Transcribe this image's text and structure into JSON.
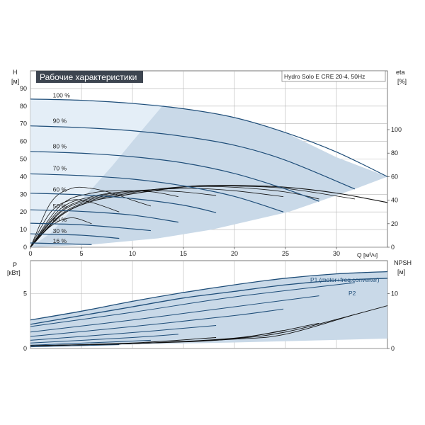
{
  "chart_data": [
    {
      "type": "line",
      "title": "Рабочие характеристики",
      "model": "Hydro Solo E CRE 20-4, 50Hz",
      "xlabel": "Q [м³/ч]",
      "ylabel_top": "H",
      "ylabel_bottom": "[м]",
      "y2label_top": "eta",
      "y2label_bottom": "[%]",
      "xlim": [
        0,
        35
      ],
      "ylim": [
        0,
        100
      ],
      "y2lim": [
        0,
        150
      ],
      "xticks": [
        0,
        5,
        10,
        15,
        20,
        25,
        30
      ],
      "yticks": [
        0,
        10,
        20,
        30,
        40,
        50,
        60,
        70,
        80,
        90
      ],
      "y2ticks": [
        0,
        20,
        40,
        60,
        80,
        100
      ],
      "grid": true,
      "colors": {
        "curve": "#1f4e79",
        "region_outer": "#c9d9e8",
        "region_inner": "#e4eef7",
        "eta": "#111111"
      },
      "region_outer": [
        [
          0,
          84
        ],
        [
          5,
          83.3
        ],
        [
          10,
          82
        ],
        [
          13,
          80.5
        ],
        [
          20,
          73.5
        ],
        [
          25,
          65
        ],
        [
          30,
          51
        ],
        [
          35,
          40
        ],
        [
          31.8,
          33
        ],
        [
          25.3,
          20
        ],
        [
          17.8,
          10
        ],
        [
          12.5,
          5
        ],
        [
          6,
          1.5
        ],
        [
          0,
          0
        ]
      ],
      "region_inner": [
        [
          0,
          84
        ],
        [
          5,
          83.3
        ],
        [
          10,
          82
        ],
        [
          13,
          80.5
        ],
        [
          10,
          60
        ],
        [
          8,
          46
        ],
        [
          6,
          33
        ],
        [
          4,
          21
        ],
        [
          2,
          8
        ],
        [
          0,
          0
        ]
      ],
      "series": [
        {
          "name": "100 %",
          "label_x": 2.2,
          "label_y": 85,
          "x": [
            0,
            5,
            10,
            15,
            20,
            25,
            30,
            35
          ],
          "y": [
            84,
            83.3,
            81.5,
            78.5,
            73.5,
            65,
            54,
            40
          ]
        },
        {
          "name": "90 %",
          "label_x": 2.2,
          "label_y": 70.5,
          "x": [
            0,
            5,
            10,
            15,
            20,
            25,
            31.8
          ],
          "y": [
            68.8,
            67.8,
            66,
            62.8,
            57.8,
            49.3,
            33
          ]
        },
        {
          "name": "80 %",
          "label_x": 2.2,
          "label_y": 56,
          "x": [
            0,
            5,
            10,
            15,
            20,
            25,
            28.3
          ],
          "y": [
            54.3,
            53.3,
            51.3,
            47.8,
            41.8,
            33,
            26
          ]
        },
        {
          "name": "70 %",
          "label_x": 2.2,
          "label_y": 43.5,
          "x": [
            0,
            5,
            10,
            15,
            20,
            24.8
          ],
          "y": [
            41.6,
            40.6,
            38.6,
            34.8,
            28.8,
            20
          ]
        },
        {
          "name": "60 %",
          "label_x": 2.2,
          "label_y": 31.5,
          "x": [
            0,
            5,
            10,
            15,
            18.2
          ],
          "y": [
            30.6,
            29.7,
            27.6,
            23.8,
            19.6
          ]
        },
        {
          "name": "50 %",
          "label_x": 2.2,
          "label_y": 22,
          "x": [
            0,
            5,
            10,
            14.5
          ],
          "y": [
            21.2,
            20.3,
            18.2,
            14.2
          ]
        },
        {
          "name": "40 %",
          "label_x": 2.2,
          "label_y": 14.5,
          "x": [
            0,
            5,
            10,
            11.8
          ],
          "y": [
            13.6,
            12.7,
            10.4,
            9.4
          ]
        },
        {
          "name": "30 %",
          "label_x": 2.2,
          "label_y": 8,
          "x": [
            0,
            5,
            8.7
          ],
          "y": [
            7.6,
            6.8,
            5
          ]
        },
        {
          "name": "16 %",
          "label_x": 2.2,
          "label_y": 2.5,
          "x": [
            0,
            3,
            6
          ],
          "y": [
            2.4,
            2.0,
            1.5
          ]
        }
      ],
      "eta_curves": [
        {
          "x": [
            0,
            3,
            6,
            9,
            12,
            16,
            20,
            25,
            30,
            35
          ],
          "y": [
            0,
            27,
            39,
            44,
            48,
            52,
            52.5,
            51,
            46,
            38
          ]
        },
        {
          "x": [
            0,
            3,
            6,
            9,
            12,
            16,
            20,
            25,
            31.8
          ],
          "y": [
            0,
            28,
            40,
            45,
            49,
            52,
            52,
            50,
            41
          ]
        },
        {
          "x": [
            0,
            3,
            6,
            9,
            12,
            16,
            20,
            25,
            28.3
          ],
          "y": [
            0,
            30,
            41,
            46,
            49,
            51.5,
            51,
            47,
            41
          ]
        },
        {
          "x": [
            0,
            3,
            6,
            9,
            12,
            16,
            20,
            24.8
          ],
          "y": [
            0,
            31,
            42,
            47,
            49,
            50,
            48,
            43
          ]
        },
        {
          "x": [
            0,
            3,
            6,
            9,
            12,
            15,
            18.2
          ],
          "y": [
            0,
            33,
            43,
            47,
            48,
            47,
            44
          ]
        },
        {
          "x": [
            0,
            3,
            6,
            9,
            12,
            14.5
          ],
          "y": [
            0,
            36,
            46,
            48,
            47,
            43
          ]
        },
        {
          "x": [
            0,
            2,
            4,
            6,
            8,
            10,
            11.8
          ],
          "y": [
            0,
            38,
            50,
            50,
            46,
            40,
            35
          ]
        },
        {
          "x": [
            0,
            2,
            4,
            6,
            8.7
          ],
          "y": [
            0,
            30,
            40,
            38,
            30
          ]
        },
        {
          "x": [
            0,
            2,
            4,
            6
          ],
          "y": [
            0,
            18,
            25,
            20
          ]
        }
      ]
    },
    {
      "type": "line",
      "ylabel_top": "P",
      "ylabel_bottom": "[кВт]",
      "y2label_top": "NPSH",
      "y2label_bottom": "[м]",
      "xlim": [
        0,
        35
      ],
      "ylim": [
        0,
        8
      ],
      "y2lim": [
        0,
        16
      ],
      "yticks": [
        0,
        5
      ],
      "y2ticks": [
        0,
        10
      ],
      "grid": true,
      "series": [
        {
          "name": "P1 (motor+freq.converter)",
          "x": [
            0,
            5,
            10,
            15,
            20,
            25,
            30,
            35
          ],
          "y": [
            2.6,
            3.4,
            4.3,
            5.1,
            5.8,
            6.4,
            6.8,
            7.0
          ]
        },
        {
          "name": "P2",
          "x": [
            0,
            5,
            10,
            15,
            20,
            25,
            30,
            35
          ],
          "y": [
            2.2,
            3.0,
            3.8,
            4.6,
            5.2,
            5.8,
            6.2,
            6.4
          ]
        }
      ],
      "p_family": [
        {
          "x": [
            0,
            10,
            20,
            31.8
          ],
          "y": [
            2.0,
            3.3,
            4.7,
            6.0
          ]
        },
        {
          "x": [
            0,
            10,
            20,
            28.3
          ],
          "y": [
            1.5,
            2.6,
            3.8,
            4.8
          ]
        },
        {
          "x": [
            0,
            10,
            20,
            24.8
          ],
          "y": [
            1.1,
            2.0,
            3.0,
            3.6
          ]
        },
        {
          "x": [
            0,
            10,
            18.2
          ],
          "y": [
            0.75,
            1.45,
            2.1
          ]
        },
        {
          "x": [
            0,
            10,
            14.5
          ],
          "y": [
            0.5,
            1.0,
            1.3
          ]
        },
        {
          "x": [
            0,
            8,
            11.8
          ],
          "y": [
            0.3,
            0.6,
            0.75
          ]
        },
        {
          "x": [
            0,
            8.7
          ],
          "y": [
            0.15,
            0.35
          ]
        }
      ],
      "npsh_curves": [
        {
          "x": [
            0,
            10,
            20,
            25,
            30,
            35
          ],
          "y": [
            0.5,
            0.9,
            1.8,
            3.0,
            5.3,
            7.8
          ]
        },
        {
          "x": [
            0,
            10,
            20,
            25,
            31.8
          ],
          "y": [
            0.5,
            0.9,
            1.7,
            2.6,
            6.2
          ]
        },
        {
          "x": [
            0,
            10,
            20,
            28.3
          ],
          "y": [
            0.5,
            0.9,
            1.8,
            4.6
          ]
        },
        {
          "x": [
            0,
            10,
            20,
            24.8
          ],
          "y": [
            0.5,
            0.9,
            1.9,
            3.3
          ]
        },
        {
          "x": [
            0,
            10,
            18.2
          ],
          "y": [
            0.5,
            1.0,
            2.0
          ]
        }
      ]
    }
  ]
}
